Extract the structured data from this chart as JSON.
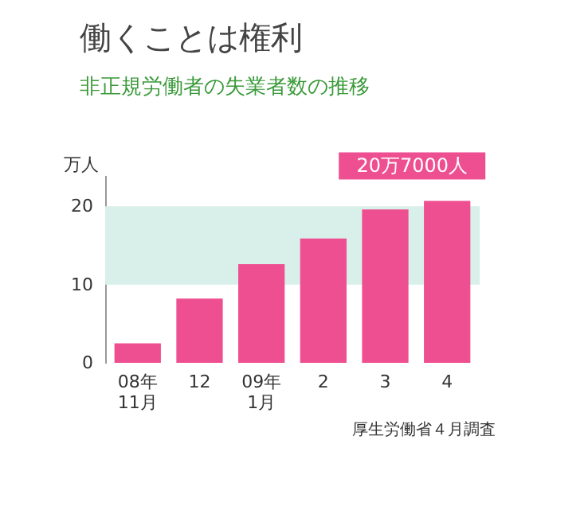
{
  "chart_data": {
    "type": "bar",
    "title": "働くことは権利",
    "subtitle": "非正規労働者の失業者数の推移",
    "ylabel": "万人",
    "categories": [
      "08年\n11月",
      "12",
      "09年\n1月",
      "2",
      "3",
      "4"
    ],
    "values": [
      2.5,
      8.2,
      12.6,
      15.9,
      19.6,
      20.7
    ],
    "color": "#ee4f91",
    "ylim": [
      0,
      24
    ],
    "yticks": [
      0,
      10,
      20
    ],
    "grid": false,
    "bands": [
      {
        "axis": "y",
        "from": 10,
        "to": 20,
        "color": "#d9efe9"
      }
    ],
    "annotations": [
      {
        "text": "20万7000人",
        "x": "4",
        "y": 20.7
      },
      "厚生労働省４月調査"
    ]
  }
}
